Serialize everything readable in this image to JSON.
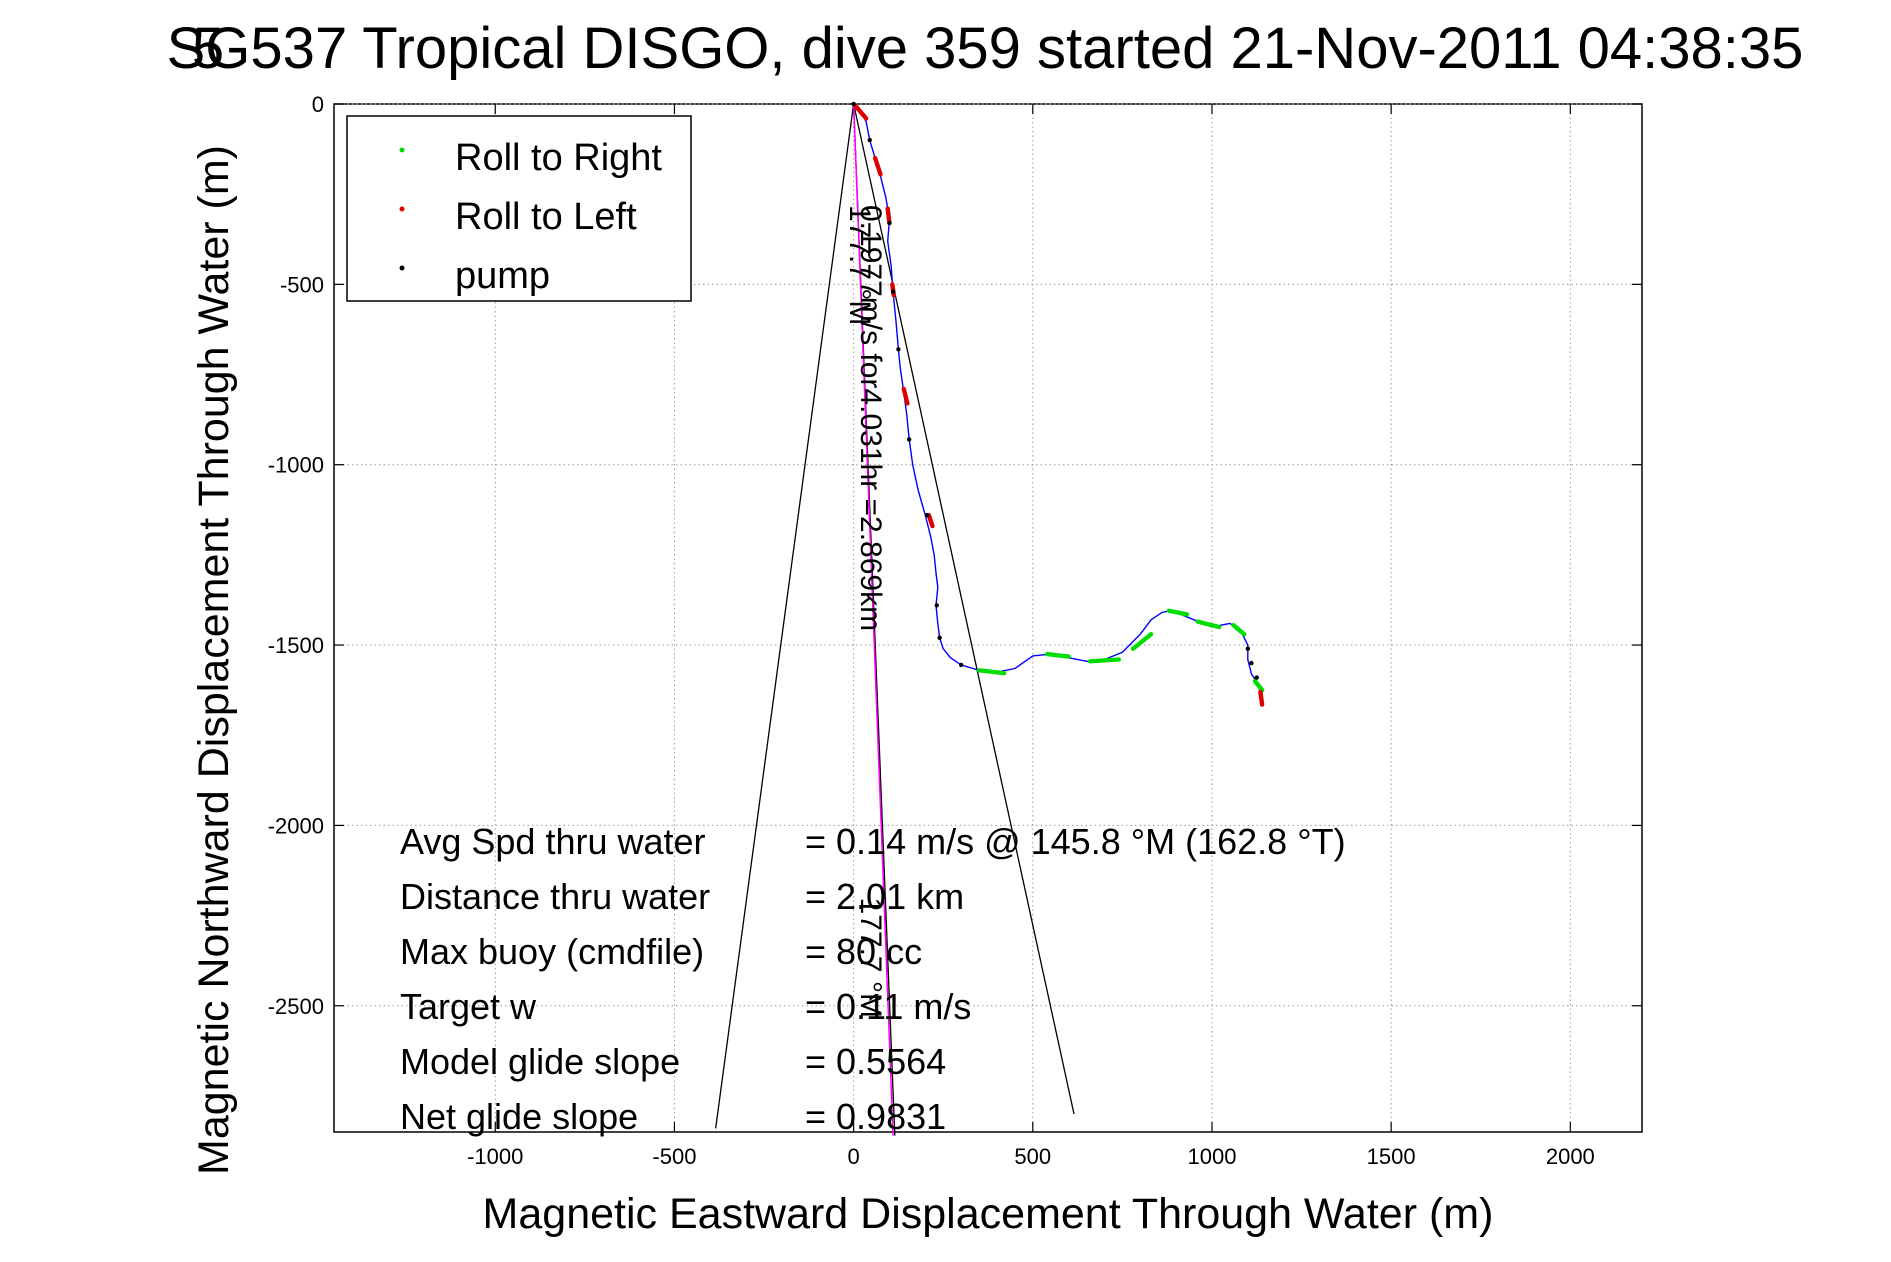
{
  "chart_data": {
    "type": "line",
    "title": "SG537 Tropical DISGO, dive 359 started 21-Nov-2011 04:38:35",
    "title_overlap_char": "5",
    "xlabel": "Magnetic Eastward Displacement Through Water (m)",
    "ylabel": "Magnetic Northward Displacement Through Water (m)",
    "xlim": [
      -1450,
      2200
    ],
    "ylim": [
      -2850,
      0
    ],
    "xticks": [
      -1000,
      -500,
      0,
      500,
      1000,
      1500,
      2000
    ],
    "yticks": [
      0,
      -500,
      -1000,
      -1500,
      -2000,
      -2500
    ],
    "grid": true,
    "legend": {
      "placement": "top-left",
      "entries": [
        {
          "name": "Roll to Right",
          "color": "#00dd00"
        },
        {
          "name": "Roll to Left",
          "color": "#dd0000"
        },
        {
          "name": "pump",
          "color": "#000000"
        }
      ]
    },
    "track": {
      "color": "#0000ff",
      "x": [
        0,
        20,
        35,
        45,
        60,
        75,
        90,
        100,
        95,
        105,
        110,
        118,
        125,
        130,
        140,
        148,
        155,
        165,
        180,
        200,
        215,
        225,
        230,
        235,
        230,
        235,
        240,
        250,
        270,
        300,
        350,
        400,
        450,
        500,
        550,
        600,
        650,
        700,
        750,
        800,
        830,
        860,
        880,
        900,
        950,
        1000,
        1050,
        1080,
        1100,
        1100,
        1110,
        1130,
        1140,
        1140
      ],
      "y": [
        0,
        -20,
        -50,
        -100,
        -150,
        -200,
        -260,
        -320,
        -380,
        -450,
        -520,
        -600,
        -680,
        -730,
        -800,
        -860,
        -930,
        -1000,
        -1070,
        -1140,
        -1200,
        -1250,
        -1300,
        -1340,
        -1390,
        -1440,
        -1480,
        -1510,
        -1535,
        -1555,
        -1570,
        -1575,
        -1565,
        -1530,
        -1525,
        -1535,
        -1545,
        -1540,
        -1520,
        -1470,
        -1430,
        -1410,
        -1405,
        -1410,
        -1430,
        -1450,
        -1440,
        -1460,
        -1500,
        -1540,
        -1580,
        -1610,
        -1625,
        -1660
      ]
    },
    "roll_right_segments": [
      {
        "x": [
          350,
          420
        ],
        "y": [
          -1570,
          -1578
        ]
      },
      {
        "x": [
          540,
          600
        ],
        "y": [
          -1525,
          -1532
        ]
      },
      {
        "x": [
          660,
          740
        ],
        "y": [
          -1545,
          -1540
        ]
      },
      {
        "x": [
          780,
          830
        ],
        "y": [
          -1510,
          -1470
        ]
      },
      {
        "x": [
          880,
          930
        ],
        "y": [
          -1405,
          -1415
        ]
      },
      {
        "x": [
          960,
          1020
        ],
        "y": [
          -1435,
          -1450
        ]
      },
      {
        "x": [
          1060,
          1090
        ],
        "y": [
          -1445,
          -1470
        ]
      },
      {
        "x": [
          1120,
          1140
        ],
        "y": [
          -1600,
          -1625
        ]
      }
    ],
    "roll_left_segments": [
      {
        "x": [
          5,
          35
        ],
        "y": [
          -5,
          -40
        ]
      },
      {
        "x": [
          60,
          75
        ],
        "y": [
          -150,
          -195
        ]
      },
      {
        "x": [
          95,
          100
        ],
        "y": [
          -290,
          -330
        ]
      },
      {
        "x": [
          108,
          112
        ],
        "y": [
          -500,
          -530
        ]
      },
      {
        "x": [
          140,
          150
        ],
        "y": [
          -790,
          -830
        ]
      },
      {
        "x": [
          210,
          220
        ],
        "y": [
          -1140,
          -1170
        ]
      },
      {
        "x": [
          1135,
          1140
        ],
        "y": [
          -1630,
          -1665
        ]
      }
    ],
    "pump_points": {
      "x": [
        0,
        45,
        100,
        110,
        125,
        155,
        205,
        232,
        240,
        300,
        1100,
        1110,
        1125
      ],
      "y": [
        0,
        -100,
        -330,
        -520,
        -680,
        -930,
        -1140,
        -1390,
        -1480,
        -1555,
        -1510,
        -1550,
        -1590
      ]
    },
    "fan_lines": {
      "color": "#000000",
      "lines": [
        {
          "x": [
            0,
            -385
          ],
          "y": [
            0,
            -2840
          ]
        },
        {
          "x": [
            0,
            615
          ],
          "y": [
            0,
            -2800
          ]
        },
        {
          "x": [
            0,
            115
          ],
          "y": [
            0,
            -2860
          ]
        }
      ]
    },
    "heading_line": {
      "color": "#ff00ff",
      "x": [
        0,
        110
      ],
      "y": [
        0,
        -2860
      ]
    },
    "annotations": [
      {
        "text": "177.7 °M",
        "x": -10,
        "y": -280,
        "rotation": 90
      },
      {
        "text": "0.1977m/s for4.031hr =2.869km",
        "x": 20,
        "y": -280,
        "rotation": 90
      },
      {
        "text": "177.7 °M",
        "x": 20,
        "y": -2200,
        "rotation": 90
      }
    ],
    "stats": [
      {
        "label": "Avg Spd thru water",
        "value": "=  0.14 m/s @ 145.8 °M (162.8 °T)"
      },
      {
        "label": "Distance thru water",
        "value": "= 2.01 km"
      },
      {
        "label": "Max buoy (cmdfile)",
        "value": "= 80 cc"
      },
      {
        "label": "Target w",
        "value": "= 0.11 m/s"
      },
      {
        "label": "Model glide slope",
        "value": "= 0.5564"
      },
      {
        "label": "Net glide slope",
        "value": "= 0.9831"
      }
    ]
  }
}
